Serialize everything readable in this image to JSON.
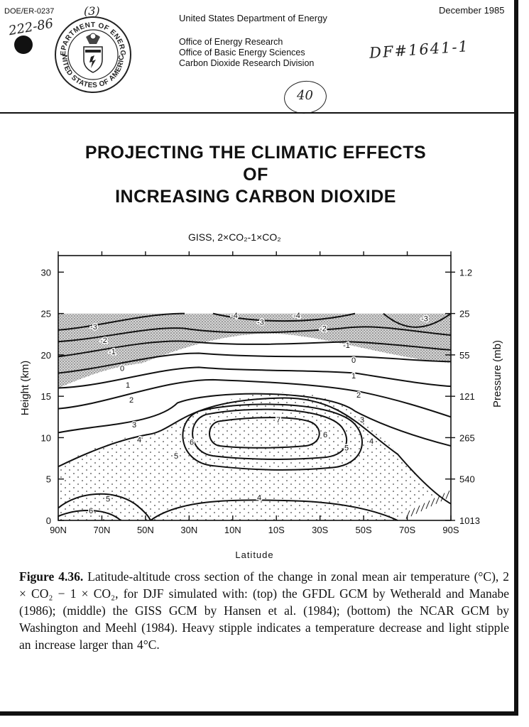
{
  "header": {
    "doc_id": "DOE/ER-0237",
    "date": "December 1985",
    "agency": "United States Department of Energy",
    "offices": [
      "Office of Energy Research",
      "Office of Basic Energy Sciences",
      "Carbon Dioxide Research Division"
    ],
    "seal_text_top": "DEPARTMENT OF ENERGY",
    "seal_text_bottom": "UNITED STATES OF AMERICA",
    "handwritten": {
      "top_left": "222-86",
      "top_mid": "(3)",
      "right": "DF#1641-1",
      "page_circle": "40"
    }
  },
  "document_title": [
    "PROJECTING THE CLIMATIC EFFECTS",
    "OF",
    "INCREASING CARBON DIOXIDE"
  ],
  "chart_data": {
    "type": "contour",
    "title": "GISS, 2×CO₂-1×CO₂",
    "xlabel": "Latitude",
    "ylabel": "Height (km)",
    "y2label": "Pressure (mb)",
    "x_ticks": [
      "90N",
      "70N",
      "50N",
      "30N",
      "10N",
      "10S",
      "30S",
      "50S",
      "70S",
      "90S"
    ],
    "y_ticks": [
      0,
      5,
      10,
      15,
      20,
      25,
      30
    ],
    "ylim": [
      0,
      32
    ],
    "pressure_ticks": [
      {
        "label": "1013",
        "height_km": 0
      },
      {
        "label": "540",
        "height_km": 5
      },
      {
        "label": "265",
        "height_km": 10
      },
      {
        "label": "121",
        "height_km": 15
      },
      {
        "label": "55",
        "height_km": 20
      },
      {
        "label": "25",
        "height_km": 25
      },
      {
        "label": "1.2",
        "height_km": 30
      }
    ],
    "contour_levels": [
      -4,
      -3,
      -2,
      -1,
      0,
      1,
      2,
      3,
      4,
      5,
      6,
      7
    ],
    "shading": {
      "heavy_stipple": "decrease",
      "light_stipple": "increase > 4°C"
    }
  },
  "caption": {
    "label": "Figure 4.36.",
    "text": "Latitude-altitude cross section of the change in zonal mean air temperature (°C), 2 × CO₂ − 1 × CO₂, for DJF simulated with: (top) the GFDL GCM by Wetherald and Manabe (1986); (middle) the GISS GCM by Hansen et al. (1984); (bottom) the NCAR GCM by Washington and Meehl (1984). Heavy stipple indicates a temperature decrease and light stipple an increase larger than 4°C."
  }
}
